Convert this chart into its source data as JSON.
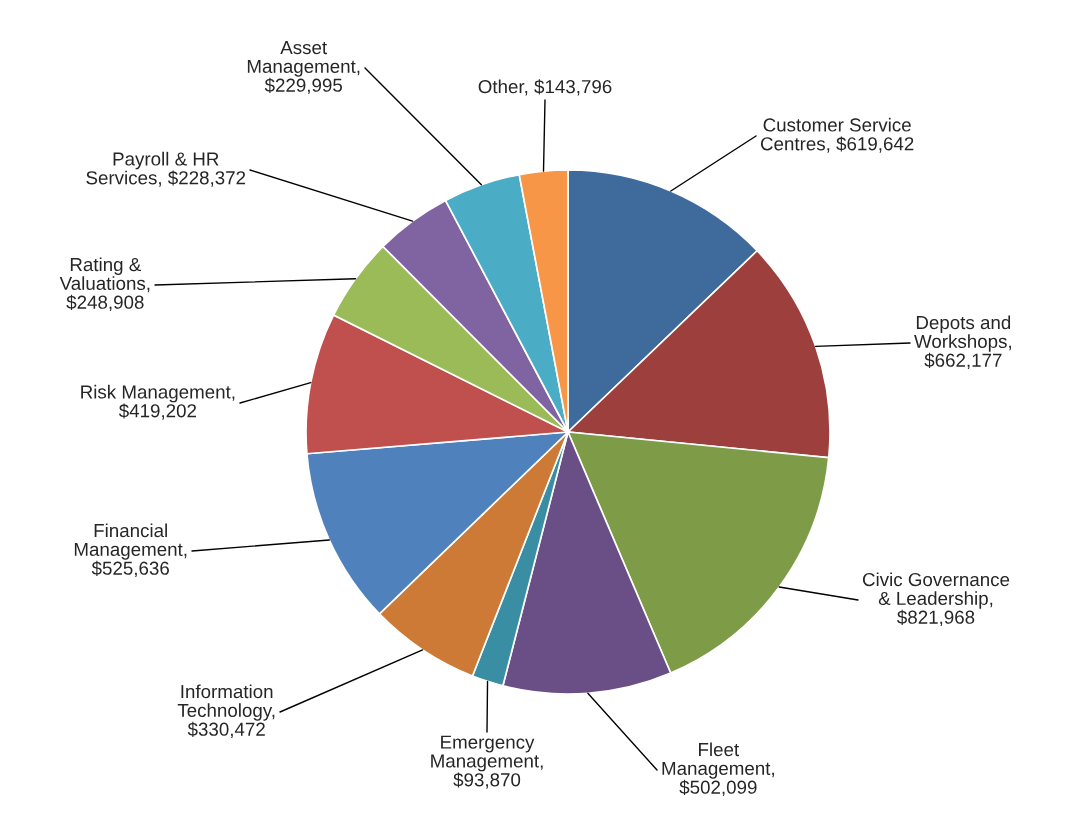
{
  "chart_data": {
    "type": "pie",
    "categories": [
      "Customer Service\nCentres",
      "Depots and\nWorkshops",
      "Civic Governance\n& Leadership",
      "Fleet\nManagement",
      "Emergency\nManagement",
      "Information\nTechnology",
      "Financial\nManagement",
      "Risk Management",
      "Rating &\nValuations",
      "Payroll & HR\nServices",
      "Asset\nManagement",
      "Other"
    ],
    "values": [
      619642,
      662177,
      821968,
      502099,
      93870,
      330472,
      525636,
      419202,
      248908,
      228372,
      229995,
      143796
    ],
    "value_labels": [
      ", $619,642",
      ",\n$662,177",
      ",\n$821,968",
      ",\n$502,099",
      ",\n$93,870",
      ",\n$330,472",
      ",\n$525,636",
      ",\n$419,202",
      ",\n$248,908",
      ", $228,372",
      ",\n$229,995",
      ", $143,796"
    ],
    "colors": [
      "#3f6a9c",
      "#9c3f3d",
      "#7e9c48",
      "#6a4e86",
      "#3a8ea3",
      "#cc7a36",
      "#4f81bd",
      "#c0504d",
      "#9bbb59",
      "#8064a2",
      "#4bacc6",
      "#f79646"
    ],
    "legend": false
  }
}
